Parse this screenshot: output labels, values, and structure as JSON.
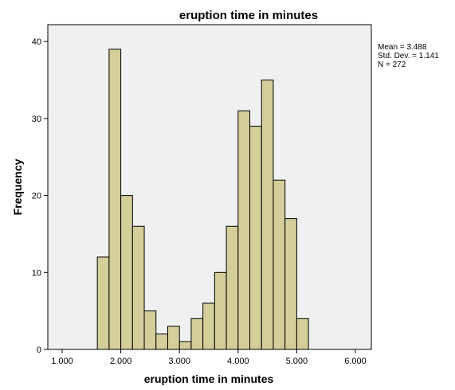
{
  "chart_data": {
    "type": "bar",
    "title": "eruption time in minutes",
    "xlabel": "eruption time in minutes",
    "ylabel": "Frequency",
    "xlim": [
      0.6,
      6.3
    ],
    "ylim": [
      0,
      43
    ],
    "xticks": [
      1.0,
      2.0,
      3.0,
      4.0,
      5.0,
      6.0
    ],
    "xtick_labels": [
      "1.000",
      "2.000",
      "3.000",
      "4.000",
      "5.000",
      "6.000"
    ],
    "yticks": [
      0,
      10,
      20,
      30,
      40
    ],
    "ytick_labels": [
      "0",
      "10",
      "20",
      "30",
      "40"
    ],
    "bin_width": 0.2,
    "bins": [
      {
        "x0": 1.6,
        "x1": 1.8,
        "count": 12
      },
      {
        "x0": 1.8,
        "x1": 2.0,
        "count": 39
      },
      {
        "x0": 2.0,
        "x1": 2.2,
        "count": 20
      },
      {
        "x0": 2.2,
        "x1": 2.4,
        "count": 16
      },
      {
        "x0": 2.4,
        "x1": 2.6,
        "count": 5
      },
      {
        "x0": 2.6,
        "x1": 2.8,
        "count": 2
      },
      {
        "x0": 2.8,
        "x1": 3.0,
        "count": 3
      },
      {
        "x0": 3.0,
        "x1": 3.2,
        "count": 1
      },
      {
        "x0": 3.2,
        "x1": 3.4,
        "count": 4
      },
      {
        "x0": 3.4,
        "x1": 3.6,
        "count": 6
      },
      {
        "x0": 3.6,
        "x1": 3.8,
        "count": 10
      },
      {
        "x0": 3.8,
        "x1": 4.0,
        "count": 16
      },
      {
        "x0": 4.0,
        "x1": 4.2,
        "count": 31
      },
      {
        "x0": 4.2,
        "x1": 4.4,
        "count": 29
      },
      {
        "x0": 4.4,
        "x1": 4.6,
        "count": 35
      },
      {
        "x0": 4.6,
        "x1": 4.8,
        "count": 22
      },
      {
        "x0": 4.8,
        "x1": 5.0,
        "count": 17
      },
      {
        "x0": 5.0,
        "x1": 5.2,
        "count": 4
      }
    ],
    "grid": false,
    "colors": {
      "bar_fill": "#d3ce9a",
      "bar_stroke": "#000000",
      "plot_background": "#f0f0f0",
      "axis": "#000000"
    }
  },
  "stats": {
    "mean": "Mean = 3.488",
    "std_dev": "Std. Dev. = 1.141",
    "n": "N = 272"
  }
}
